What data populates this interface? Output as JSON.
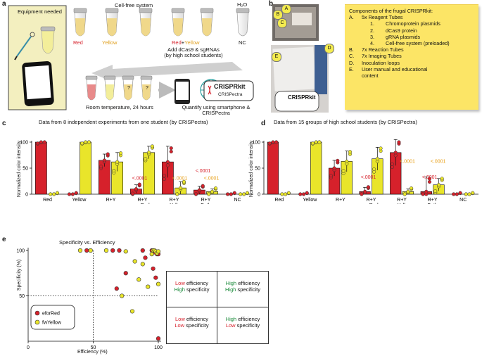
{
  "panel_a": {
    "label": "a",
    "equipment_label": "Equipment needed",
    "cell_free_label": "Cell-free system",
    "water_label": "H₂O",
    "tube_labels": {
      "red": "Red",
      "yellow": "Yellow",
      "redplus": "Red",
      "plus": "+",
      "yellowpart": "Yellow",
      "nc": "NC"
    },
    "add_text_1": "Add dCas9 & sgRNAs",
    "add_text_2": "(by high school students)",
    "incubate_text": "Room temperature, 24 hours",
    "quantify_text_1": "Quantify using smartphone &",
    "quantify_text_2": "CRISPectra",
    "logo_text": "CRISPRkit",
    "logo_sub": "CRISPectra",
    "question_mark": "?"
  },
  "panel_b": {
    "label": "b",
    "photo_badges": [
      "A",
      "B",
      "C",
      "D",
      "E"
    ],
    "note_title": "Components of the frugal CRISPRkit:",
    "items": [
      {
        "key": "A.",
        "text": "5x Reagent Tubes"
      },
      {
        "key": "B.",
        "text": "7x Reaction Tubes"
      },
      {
        "key": "C.",
        "text": "7x Imaging Tubes"
      },
      {
        "key": "D.",
        "text": "Inoculation loops"
      },
      {
        "key": "E.",
        "text": "User manual and educational"
      },
      {
        "key": "",
        "text": "content"
      }
    ],
    "subitems": [
      {
        "n": "1.",
        "text": "Chromoprotein plasmids"
      },
      {
        "n": "2.",
        "text": "dCas9 protein"
      },
      {
        "n": "3.",
        "text": "gRNA plasmids"
      },
      {
        "n": "4.",
        "text": "Cell-free system (preloaded)"
      }
    ],
    "logo_text": "CRISPRkit"
  },
  "colors": {
    "red": "#d6212b",
    "yellow": "#e9e52a",
    "green": "#1a8a3a"
  },
  "chart_data": [
    {
      "panel": "c",
      "type": "bar",
      "title": "Data from 8 independent experiments from one student (by CRISPectra)",
      "ylabel": "Normalized color intensity",
      "ylim": [
        0,
        100
      ],
      "yticks": [
        "0",
        "50",
        "100"
      ],
      "categories": [
        "Red",
        "Yellow",
        "R+Y",
        "R+Y sgRed",
        "R+Y sgYellow",
        "R+Y Both",
        "NC"
      ],
      "cat_line1": [
        "Red",
        "Yellow",
        "R+Y",
        "R+Y",
        "R+Y",
        "R+Y",
        "NC"
      ],
      "cat_line2": [
        "",
        "",
        "",
        "sgRed",
        "sgYellow",
        "Both",
        ""
      ],
      "series": [
        {
          "name": "Red",
          "values": [
            100,
            0,
            65,
            10,
            62,
            8,
            0
          ],
          "errors": [
            0,
            0,
            12,
            8,
            30,
            7,
            0
          ]
        },
        {
          "name": "Yellow",
          "values": [
            0,
            100,
            62,
            80,
            12,
            5,
            0
          ],
          "errors": [
            0,
            0,
            18,
            12,
            12,
            5,
            0
          ]
        }
      ],
      "annotations": [
        {
          "text": "<.0001",
          "color": "red",
          "cat": 3,
          "y": 28
        },
        {
          "text": "<.0001",
          "color": "yellow",
          "cat": 4,
          "y": 28
        },
        {
          "text": "<.0001",
          "color": "red",
          "cat": 5,
          "y": 42
        },
        {
          "text": "<.0001",
          "color": "yellow",
          "cat": 5,
          "y": 28
        }
      ]
    },
    {
      "panel": "d",
      "type": "bar",
      "title": "Data from 15 groups of high school students (by CRISPectra)",
      "ylabel": "Normalized color intensity",
      "ylim": [
        0,
        100
      ],
      "yticks": [
        "0",
        "50",
        "100"
      ],
      "categories": [
        "Red",
        "Yellow",
        "R+Y",
        "R+Y sgRed",
        "R+Y sgYellow",
        "R+Y Both",
        "NC"
      ],
      "cat_line1": [
        "Red",
        "Yellow",
        "R+Y",
        "R+Y",
        "R+Y",
        "R+Y",
        "NC"
      ],
      "cat_line2": [
        "",
        "",
        "",
        "sgRed",
        "sgYellow",
        "Both",
        ""
      ],
      "series": [
        {
          "name": "Red",
          "values": [
            100,
            0,
            50,
            5,
            80,
            5,
            0
          ],
          "errors": [
            0,
            0,
            15,
            8,
            25,
            28,
            0
          ]
        },
        {
          "name": "Yellow",
          "values": [
            0,
            100,
            63,
            68,
            5,
            18,
            0
          ],
          "errors": [
            0,
            0,
            20,
            22,
            5,
            12,
            0
          ]
        }
      ],
      "annotations": [
        {
          "text": "<.0001",
          "color": "red",
          "cat": 3,
          "y": 30
        },
        {
          "text": "<.0001",
          "color": "yellow",
          "cat": 4,
          "y": 60
        },
        {
          "text": "<.0001",
          "color": "red",
          "cat": 5,
          "y": 30
        },
        {
          "text": "<.0001",
          "color": "yellow",
          "cat": 5,
          "y": 60
        }
      ]
    },
    {
      "panel": "e",
      "type": "scatter",
      "title": "Specificity vs. Efficiency",
      "xlabel": "Efficiency (%)",
      "ylabel": "Specificity (%)",
      "xlim": [
        0,
        100
      ],
      "ylim": [
        0,
        100
      ],
      "xticks": [
        "0",
        "50",
        "100"
      ],
      "yticks": [
        "50",
        "100"
      ],
      "threshold_x": 50,
      "threshold_y": 50,
      "legend": [
        "eforRed",
        "fwYellow"
      ],
      "series": [
        {
          "name": "eforRed",
          "points": [
            [
              45,
              100
            ],
            [
              65,
              100
            ],
            [
              70,
              100
            ],
            [
              95,
              100
            ],
            [
              97,
              98
            ],
            [
              98,
              99
            ],
            [
              99,
              96
            ],
            [
              100,
              96
            ],
            [
              96,
              80
            ],
            [
              98,
              70
            ],
            [
              68,
              58
            ],
            [
              75,
              75
            ],
            [
              90,
              92
            ],
            [
              100,
              3
            ],
            [
              88,
              100
            ]
          ]
        },
        {
          "name": "fwYellow",
          "points": [
            [
              40,
              100
            ],
            [
              48,
              100
            ],
            [
              60,
              100
            ],
            [
              75,
              99
            ],
            [
              96,
              100
            ],
            [
              97,
              100
            ],
            [
              98,
              99
            ],
            [
              99,
              97
            ],
            [
              100,
              99
            ],
            [
              88,
              85
            ],
            [
              82,
              88
            ],
            [
              85,
              68
            ],
            [
              92,
              60
            ],
            [
              100,
              63
            ],
            [
              72,
              50
            ],
            [
              80,
              33
            ],
            [
              95,
              96
            ]
          ]
        }
      ],
      "quadrants": [
        {
          "eff_word": "Low",
          "eff_rest": " efficiency",
          "eff_color": "red",
          "spec_word": "High",
          "spec_rest": " specificity",
          "spec_color": "green"
        },
        {
          "eff_word": "High",
          "eff_rest": " efficiency",
          "eff_color": "green",
          "spec_word": "High",
          "spec_rest": " specificity",
          "spec_color": "green"
        },
        {
          "eff_word": "Low",
          "eff_rest": " efficiency",
          "eff_color": "red",
          "spec_word": "Low",
          "spec_rest": " specificity",
          "spec_color": "red"
        },
        {
          "eff_word": "High",
          "eff_rest": " efficiency",
          "eff_color": "green",
          "spec_word": "Low",
          "spec_rest": " specificity",
          "spec_color": "red"
        }
      ]
    }
  ]
}
